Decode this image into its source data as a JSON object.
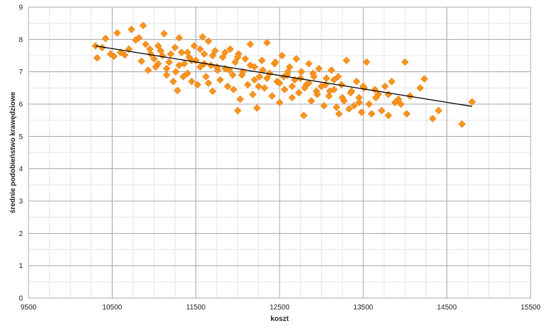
{
  "chart_data": {
    "type": "scatter",
    "title": "",
    "xlabel": "koszt",
    "ylabel": "średnie podobieństwo krawędziowe",
    "xlim": [
      9500,
      15500
    ],
    "ylim": [
      0,
      9
    ],
    "x_major_ticks": [
      9500,
      10500,
      11500,
      12500,
      13500,
      14500,
      15500
    ],
    "y_major_ticks": [
      0,
      1,
      2,
      3,
      4,
      5,
      6,
      7,
      8,
      9
    ],
    "x_minor_step": 250,
    "y_minor_step": 0.5,
    "grid": true,
    "legend": "none",
    "marker": "diamond",
    "marker_color": "#f7931e",
    "trendline": {
      "type": "linear",
      "x": [
        10300,
        14800
      ],
      "y": [
        7.8,
        5.93
      ],
      "color": "#000000"
    },
    "series": [
      {
        "points": [
          [
            10300,
            7.8
          ],
          [
            10320,
            7.43
          ],
          [
            10380,
            7.75
          ],
          [
            10420,
            8.03
          ],
          [
            10480,
            7.55
          ],
          [
            10520,
            7.48
          ],
          [
            10560,
            8.2
          ],
          [
            10600,
            7.6
          ],
          [
            10650,
            7.52
          ],
          [
            10700,
            7.7
          ],
          [
            10730,
            8.31
          ],
          [
            10780,
            7.98
          ],
          [
            10820,
            8.05
          ],
          [
            10850,
            7.33
          ],
          [
            10870,
            8.43
          ],
          [
            10900,
            7.85
          ],
          [
            10930,
            7.05
          ],
          [
            10960,
            7.55
          ],
          [
            11000,
            7.4
          ],
          [
            11020,
            7.15
          ],
          [
            11050,
            7.8
          ],
          [
            11080,
            7.65
          ],
          [
            11120,
            8.18
          ],
          [
            11150,
            6.9
          ],
          [
            11180,
            7.3
          ],
          [
            11200,
            7.55
          ],
          [
            11230,
            6.7
          ],
          [
            11260,
            7.0
          ],
          [
            11280,
            6.42
          ],
          [
            11300,
            8.05
          ],
          [
            11330,
            7.6
          ],
          [
            11360,
            7.25
          ],
          [
            11400,
            6.95
          ],
          [
            11420,
            7.45
          ],
          [
            11450,
            6.7
          ],
          [
            11480,
            7.8
          ],
          [
            11500,
            7.35
          ],
          [
            11520,
            6.6
          ],
          [
            11550,
            7.15
          ],
          [
            11580,
            8.08
          ],
          [
            11600,
            7.55
          ],
          [
            11620,
            6.85
          ],
          [
            11650,
            7.95
          ],
          [
            11680,
            7.2
          ],
          [
            11700,
            6.4
          ],
          [
            11730,
            7.65
          ],
          [
            11760,
            7.05
          ],
          [
            11790,
            6.75
          ],
          [
            11820,
            7.45
          ],
          [
            11850,
            7.1
          ],
          [
            11880,
            6.55
          ],
          [
            11910,
            7.7
          ],
          [
            11940,
            6.9
          ],
          [
            11970,
            7.3
          ],
          [
            12000,
            5.8
          ],
          [
            12010,
            7.55
          ],
          [
            12030,
            6.15
          ],
          [
            12060,
            7.0
          ],
          [
            12090,
            7.4
          ],
          [
            12120,
            6.6
          ],
          [
            12150,
            7.85
          ],
          [
            12180,
            6.3
          ],
          [
            12200,
            7.15
          ],
          [
            12230,
            5.88
          ],
          [
            12260,
            6.85
          ],
          [
            12290,
            7.35
          ],
          [
            12320,
            6.5
          ],
          [
            12350,
            7.9
          ],
          [
            12380,
            6.95
          ],
          [
            12410,
            6.25
          ],
          [
            12440,
            7.25
          ],
          [
            12470,
            6.7
          ],
          [
            12500,
            6.05
          ],
          [
            12530,
            7.5
          ],
          [
            12560,
            6.45
          ],
          [
            12590,
            6.9
          ],
          [
            12620,
            7.15
          ],
          [
            12650,
            6.2
          ],
          [
            12680,
            6.75
          ],
          [
            12700,
            7.4
          ],
          [
            12730,
            6.35
          ],
          [
            12760,
            7.0
          ],
          [
            12790,
            5.65
          ],
          [
            12820,
            6.6
          ],
          [
            12850,
            7.25
          ],
          [
            12880,
            6.1
          ],
          [
            12910,
            6.85
          ],
          [
            12940,
            6.4
          ],
          [
            12970,
            7.1
          ],
          [
            13000,
            6.55
          ],
          [
            13030,
            5.95
          ],
          [
            13060,
            6.8
          ],
          [
            13090,
            6.25
          ],
          [
            13120,
            7.05
          ],
          [
            13150,
            6.45
          ],
          [
            13180,
            5.9
          ],
          [
            13210,
            5.7
          ],
          [
            13240,
            6.6
          ],
          [
            13270,
            6.1
          ],
          [
            13300,
            7.35
          ],
          [
            13330,
            5.85
          ],
          [
            13360,
            6.4
          ],
          [
            13390,
            5.95
          ],
          [
            13420,
            6.7
          ],
          [
            13450,
            6.2
          ],
          [
            13480,
            5.75
          ],
          [
            13510,
            6.5
          ],
          [
            13540,
            7.3
          ],
          [
            13570,
            6.0
          ],
          [
            13600,
            5.7
          ],
          [
            13640,
            6.45
          ],
          [
            13680,
            6.3
          ],
          [
            13720,
            5.8
          ],
          [
            13760,
            6.55
          ],
          [
            13800,
            5.65
          ],
          [
            13840,
            6.7
          ],
          [
            13880,
            6.05
          ],
          [
            13920,
            6.15
          ],
          [
            14000,
            7.3
          ],
          [
            14020,
            5.7
          ],
          [
            14060,
            6.25
          ],
          [
            14180,
            6.5
          ],
          [
            14230,
            6.78
          ],
          [
            14330,
            5.55
          ],
          [
            14400,
            5.8
          ],
          [
            14680,
            5.38
          ],
          [
            14800,
            6.07
          ],
          [
            11100,
            7.5
          ],
          [
            11250,
            7.75
          ],
          [
            11400,
            7.6
          ],
          [
            11550,
            7.7
          ],
          [
            11700,
            7.5
          ],
          [
            11850,
            7.6
          ],
          [
            12000,
            7.45
          ],
          [
            12150,
            7.2
          ],
          [
            12300,
            7.05
          ],
          [
            12450,
            7.3
          ],
          [
            12600,
            7.0
          ],
          [
            12750,
            6.8
          ],
          [
            12900,
            6.95
          ],
          [
            13050,
            6.6
          ],
          [
            13200,
            6.85
          ],
          [
            13350,
            6.35
          ],
          [
            13500,
            6.55
          ],
          [
            13650,
            6.2
          ],
          [
            13800,
            6.3
          ],
          [
            13950,
            6.0
          ],
          [
            11150,
            7.1
          ],
          [
            11300,
            7.2
          ],
          [
            11450,
            7.35
          ],
          [
            11600,
            7.25
          ],
          [
            11750,
            7.15
          ],
          [
            11900,
            7.05
          ],
          [
            12050,
            6.9
          ],
          [
            12200,
            6.75
          ],
          [
            12350,
            6.8
          ],
          [
            12500,
            6.65
          ],
          [
            12650,
            6.55
          ],
          [
            12800,
            6.5
          ],
          [
            12950,
            6.3
          ],
          [
            13100,
            6.4
          ],
          [
            13250,
            6.2
          ],
          [
            10950,
            7.7
          ],
          [
            11050,
            7.25
          ],
          [
            11350,
            6.85
          ],
          [
            11650,
            6.65
          ],
          [
            11950,
            6.45
          ],
          [
            12250,
            6.55
          ],
          [
            12550,
            6.85
          ],
          [
            12850,
            6.65
          ],
          [
            13150,
            6.75
          ],
          [
            13450,
            6.05
          ]
        ]
      }
    ]
  }
}
